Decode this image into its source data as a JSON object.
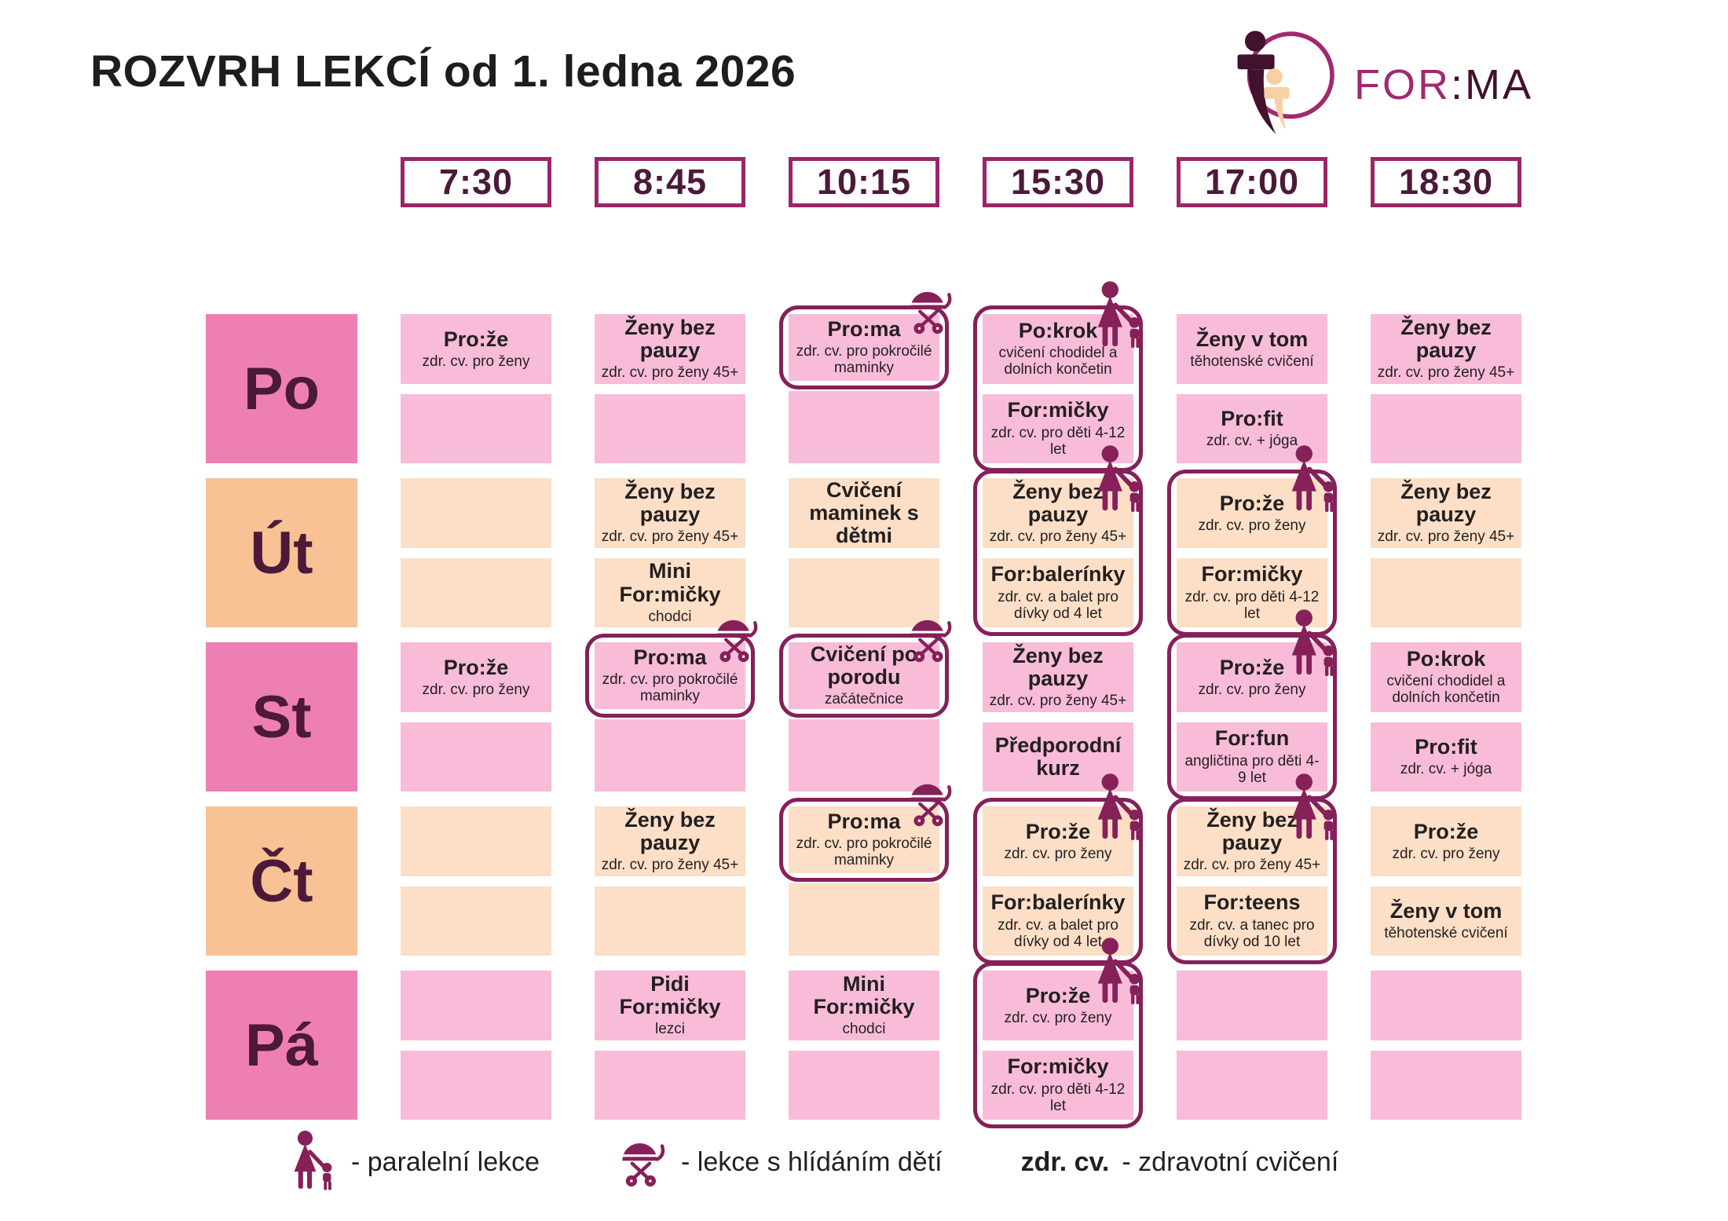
{
  "title": "ROZVRH LEKCÍ od 1. ledna 2026",
  "logo": {
    "text_primary": "FOR",
    "text_secondary": ":MA"
  },
  "times": [
    "7:30",
    "8:45",
    "10:15",
    "15:30",
    "17:00",
    "18:30"
  ],
  "legend": {
    "parallel_label": "- paralelní lekce",
    "childcare_label": "- lekce s hlídáním dětí",
    "zdr_abbr": "zdr. cv.",
    "zdr_label": "- zdravotní cvičení"
  },
  "colors": {
    "day_pink": "#ee7fb5",
    "cell_pink": "#f8bcd9",
    "day_peach": "#f8c294",
    "cell_peach": "#fcdfc6",
    "accent_magenta": "#9c2468",
    "outline_plum": "#862059",
    "brand_magenta": "#a2286f",
    "brand_dark": "#42112e",
    "text_dark": "#231f20",
    "day_text": "#4c1a38"
  },
  "days": [
    {
      "label": "Po",
      "theme": "pink",
      "slots": [
        {
          "top": {
            "title": "Pro:že",
            "subtitle": "zdr. cv. pro ženy"
          },
          "bottom": null,
          "marker": null
        },
        {
          "top": {
            "title": "Ženy bez pauzy",
            "subtitle": "zdr. cv. pro ženy 45+"
          },
          "bottom": null,
          "marker": null
        },
        {
          "top": {
            "title": "Pro:ma",
            "subtitle": "zdr. cv. pro pokročilé maminky"
          },
          "bottom": null,
          "marker": "stroller",
          "marker_span": 1
        },
        {
          "top": {
            "title": "Po:krok",
            "subtitle": "cvičení chodidel a dolních končetin"
          },
          "bottom": {
            "title": "For:mičky",
            "subtitle": "zdr. cv. pro děti 4-12 let"
          },
          "marker": "parallel",
          "marker_span": 2
        },
        {
          "top": {
            "title": "Ženy v tom",
            "subtitle": "těhotenské cvičení"
          },
          "bottom": {
            "title": "Pro:fit",
            "subtitle": "zdr. cv. + jóga"
          },
          "marker": null
        },
        {
          "top": {
            "title": "Ženy bez pauzy",
            "subtitle": "zdr. cv. pro ženy 45+"
          },
          "bottom": null,
          "marker": null
        }
      ]
    },
    {
      "label": "Út",
      "theme": "peach",
      "slots": [
        {
          "top": null,
          "bottom": null,
          "marker": null
        },
        {
          "top": {
            "title": "Ženy bez pauzy",
            "subtitle": "zdr. cv. pro ženy 45+"
          },
          "bottom": {
            "title": "Mini For:mičky",
            "subtitle": "chodci"
          },
          "marker": null
        },
        {
          "top": {
            "title": "Cvičení maminek s dětmi",
            "subtitle": ""
          },
          "bottom": null,
          "marker": null
        },
        {
          "top": {
            "title": "Ženy bez pauzy",
            "subtitle": "zdr. cv. pro ženy 45+"
          },
          "bottom": {
            "title": "For:balerínky",
            "subtitle": "zdr. cv. a balet pro dívky od 4 let"
          },
          "marker": "parallel",
          "marker_span": 2
        },
        {
          "top": {
            "title": "Pro:že",
            "subtitle": "zdr. cv. pro ženy"
          },
          "bottom": {
            "title": "For:mičky",
            "subtitle": "zdr. cv. pro děti 4-12 let"
          },
          "marker": "parallel",
          "marker_span": 2
        },
        {
          "top": {
            "title": "Ženy bez pauzy",
            "subtitle": "zdr. cv. pro ženy 45+"
          },
          "bottom": null,
          "marker": null
        }
      ]
    },
    {
      "label": "St",
      "theme": "pink",
      "slots": [
        {
          "top": {
            "title": "Pro:že",
            "subtitle": "zdr. cv. pro ženy"
          },
          "bottom": null,
          "marker": null
        },
        {
          "top": {
            "title": "Pro:ma",
            "subtitle": "zdr. cv. pro pokročilé maminky"
          },
          "bottom": null,
          "marker": "stroller",
          "marker_span": 1
        },
        {
          "top": {
            "title": "Cvičení po porodu",
            "subtitle": "začátečnice"
          },
          "bottom": null,
          "marker": "stroller",
          "marker_span": 1
        },
        {
          "top": {
            "title": "Ženy bez pauzy",
            "subtitle": "zdr. cv. pro ženy 45+"
          },
          "bottom": {
            "title": "Předporodní kurz",
            "subtitle": ""
          },
          "marker": null
        },
        {
          "top": {
            "title": "Pro:že",
            "subtitle": "zdr. cv. pro ženy"
          },
          "bottom": {
            "title": "For:fun",
            "subtitle": "angličtina pro děti 4-9 let"
          },
          "marker": "parallel",
          "marker_span": 2
        },
        {
          "top": {
            "title": "Po:krok",
            "subtitle": "cvičení chodidel a dolních končetin"
          },
          "bottom": {
            "title": "Pro:fit",
            "subtitle": "zdr. cv. + jóga"
          },
          "marker": null
        }
      ]
    },
    {
      "label": "Čt",
      "theme": "peach",
      "slots": [
        {
          "top": null,
          "bottom": null,
          "marker": null
        },
        {
          "top": {
            "title": "Ženy bez pauzy",
            "subtitle": "zdr. cv. pro ženy 45+"
          },
          "bottom": null,
          "marker": null
        },
        {
          "top": {
            "title": "Pro:ma",
            "subtitle": "zdr. cv. pro pokročilé maminky"
          },
          "bottom": null,
          "marker": "stroller",
          "marker_span": 1
        },
        {
          "top": {
            "title": "Pro:že",
            "subtitle": "zdr. cv. pro ženy"
          },
          "bottom": {
            "title": "For:balerínky",
            "subtitle": "zdr. cv. a balet pro dívky od 4 let"
          },
          "marker": "parallel",
          "marker_span": 2
        },
        {
          "top": {
            "title": "Ženy bez pauzy",
            "subtitle": "zdr. cv. pro ženy 45+"
          },
          "bottom": {
            "title": "For:teens",
            "subtitle": "zdr. cv. a tanec pro dívky od 10 let"
          },
          "marker": "parallel",
          "marker_span": 2
        },
        {
          "top": {
            "title": "Pro:že",
            "subtitle": "zdr. cv. pro ženy"
          },
          "bottom": {
            "title": "Ženy v tom",
            "subtitle": "těhotenské cvičení"
          },
          "marker": null
        }
      ]
    },
    {
      "label": "Pá",
      "theme": "pink",
      "slots": [
        {
          "top": null,
          "bottom": null,
          "marker": null
        },
        {
          "top": {
            "title": "Pidi For:mičky",
            "subtitle": "lezci"
          },
          "bottom": null,
          "marker": null
        },
        {
          "top": {
            "title": "Mini For:mičky",
            "subtitle": "chodci"
          },
          "bottom": null,
          "marker": null
        },
        {
          "top": {
            "title": "Pro:že",
            "subtitle": "zdr. cv. pro ženy"
          },
          "bottom": {
            "title": "For:mičky",
            "subtitle": "zdr. cv. pro děti 4-12 let"
          },
          "marker": "parallel",
          "marker_span": 2
        },
        {
          "top": null,
          "bottom": null,
          "marker": null
        },
        {
          "top": null,
          "bottom": null,
          "marker": null
        }
      ]
    }
  ]
}
